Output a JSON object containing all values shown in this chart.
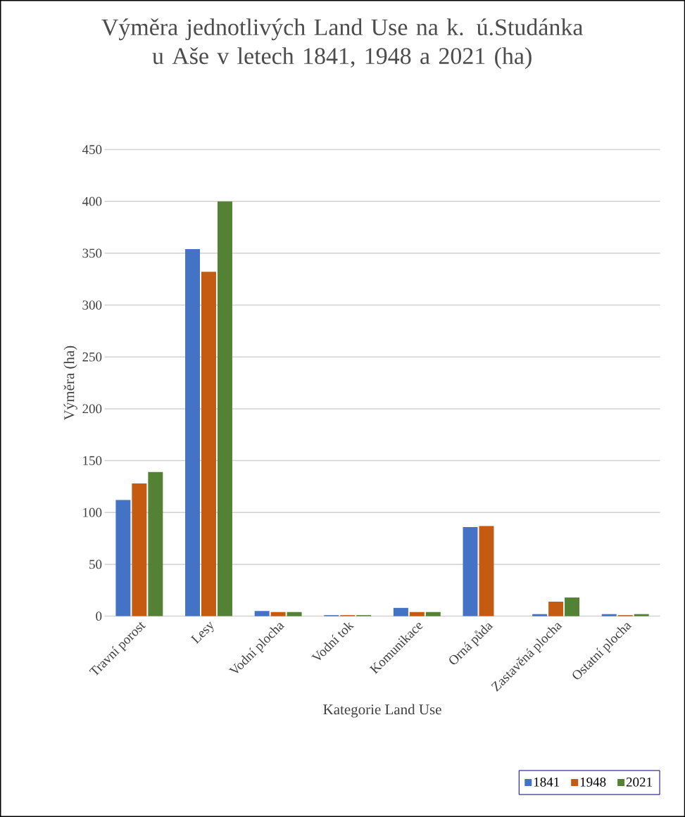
{
  "chart_data": {
    "type": "bar",
    "title": "Výměra jednotlivých Land Use na k. ú.Studánka u Aše v letech 1841, 1948 a 2021 (ha)",
    "xlabel": "Kategorie Land Use",
    "ylabel": "Výměra (ha)",
    "categories": [
      "Travní porost",
      "Lesy",
      "Vodní plocha",
      "Vodní tok",
      "Komunikace",
      "Orná půda",
      "Zastavěná plocha",
      "Ostatní plocha"
    ],
    "series": [
      {
        "name": "1841",
        "color": "#4472c4",
        "values": [
          112,
          354,
          5,
          1,
          8,
          86,
          2,
          2
        ]
      },
      {
        "name": "1948",
        "color": "#c55a11",
        "values": [
          128,
          332,
          4,
          1,
          4,
          87,
          14,
          1
        ]
      },
      {
        "name": "2021",
        "color": "#548235",
        "values": [
          139,
          400,
          4,
          1,
          4,
          0,
          18,
          2
        ]
      }
    ],
    "ylim": [
      0,
      450
    ],
    "yticks": [
      0,
      50,
      100,
      150,
      200,
      250,
      300,
      350,
      400,
      450
    ],
    "grid": "y",
    "legend": "bottom right"
  }
}
